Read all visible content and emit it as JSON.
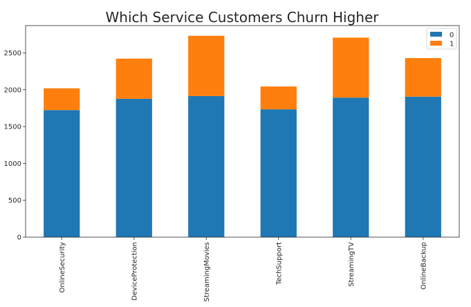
{
  "chart_data": {
    "type": "bar",
    "stacked": true,
    "title": "Which Service Customers Churn Higher",
    "xlabel": "",
    "ylabel": "",
    "categories": [
      "OnlineSecurity",
      "DeviceProtection",
      "StreamingMovies",
      "TechSupport",
      "StreamingTV",
      "OnlineBackup"
    ],
    "series": [
      {
        "name": "0",
        "color": "#1f77b4",
        "values": [
          1724,
          1877,
          1914,
          1734,
          1893,
          1906
        ]
      },
      {
        "name": "1",
        "color": "#ff7f0e",
        "values": [
          295,
          545,
          818,
          310,
          814,
          523
        ]
      }
    ],
    "ylim": [
      0,
      2870
    ],
    "yticks": [
      0,
      500,
      1000,
      1500,
      2000,
      2500
    ],
    "grid": false,
    "legend_position": "top-right"
  }
}
